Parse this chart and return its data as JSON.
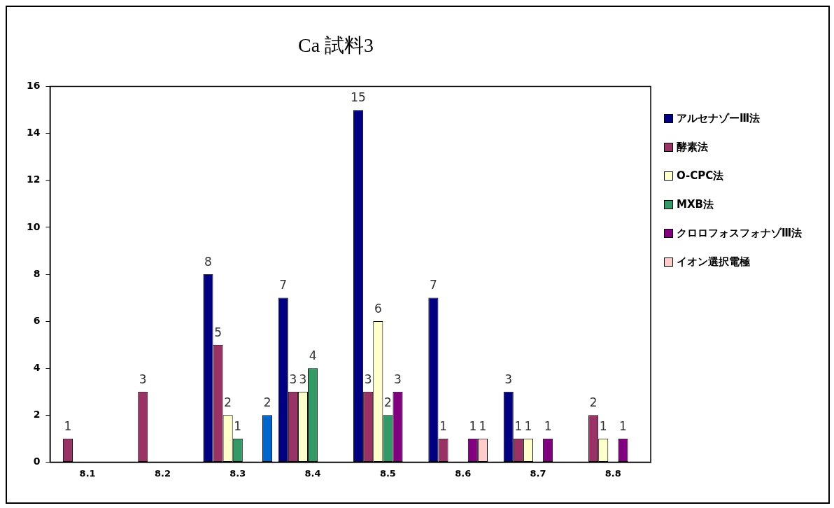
{
  "chart_data": {
    "type": "bar",
    "title": "Ca 試料3",
    "categories": [
      "8.1",
      "8.2",
      "8.3",
      "8.4",
      "8.5",
      "8.6",
      "8.7",
      "8.8"
    ],
    "series": [
      {
        "name": "アルセナゾーⅢ法",
        "color": "#000080",
        "values": [
          null,
          null,
          8,
          7,
          15,
          7,
          3,
          null
        ]
      },
      {
        "name": "酵素法",
        "color": "#993366",
        "values": [
          1,
          3,
          5,
          3,
          3,
          1,
          1,
          2
        ]
      },
      {
        "name": "O-CPC法",
        "color": "#ffffcc",
        "values": [
          null,
          null,
          2,
          3,
          6,
          null,
          1,
          1
        ]
      },
      {
        "name": "MXB法",
        "color": "#339966",
        "values": [
          null,
          null,
          1,
          4,
          2,
          null,
          null,
          null
        ]
      },
      {
        "name": "クロロフォスフォナゾⅢ法",
        "color": "#800080",
        "values": [
          null,
          null,
          null,
          null,
          3,
          1,
          1,
          1
        ]
      },
      {
        "name": "イオン選択電極",
        "color": "#ffcccc",
        "values": [
          null,
          null,
          null,
          null,
          null,
          1,
          null,
          null
        ]
      },
      {
        "color": "#0066cc",
        "values": [
          null,
          null,
          2,
          null,
          null,
          null,
          null,
          null
        ]
      }
    ],
    "ylim": [
      0,
      16
    ],
    "yticks": [
      0,
      2,
      4,
      6,
      8,
      10,
      12,
      14,
      16
    ],
    "grid": false,
    "legend": "right",
    "data_labels": true
  }
}
